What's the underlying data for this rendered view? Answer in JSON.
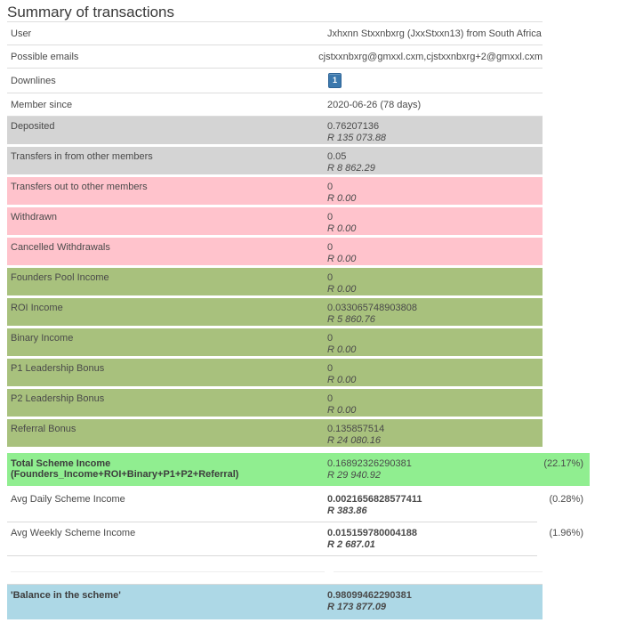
{
  "title": "Summary of transactions",
  "colors": {
    "row_gray": "#d4d4d4",
    "row_pink": "#ffc3cc",
    "row_green": "#a8c17d",
    "row_total_green": "#90ee90",
    "row_balance_blue": "#add8e6",
    "badge_blue": "#3b78ad",
    "border_gray": "#dddddd"
  },
  "info_rows": [
    {
      "label": "User",
      "value": "Jxhxnn Stxxnbxrg (JxxStxxn13) from South Africa"
    },
    {
      "label": "Possible emails",
      "value": "cjstxxnbxrg@gmxxl.cxm,cjstxxnbxrg+2@gmxxl.cxm"
    },
    {
      "label": "Downlines",
      "badge": "1"
    },
    {
      "label": "Member since",
      "value": "2020-06-26 (78 days)"
    }
  ],
  "amount_rows": [
    {
      "label": "Deposited",
      "btc": "0.76207136",
      "rand": "R 135 073.88",
      "bg": "row_gray"
    },
    {
      "label": "Transfers in from other members",
      "btc": "0.05",
      "rand": "R 8 862.29",
      "bg": "row_gray"
    },
    {
      "label": "Transfers out to other members",
      "btc": "0",
      "rand": "R 0.00",
      "bg": "row_pink"
    },
    {
      "label": "Withdrawn",
      "btc": "0",
      "rand": "R 0.00",
      "bg": "row_pink"
    },
    {
      "label": "Cancelled Withdrawals",
      "btc": "0",
      "rand": "R 0.00",
      "bg": "row_pink"
    },
    {
      "label": "Founders Pool Income",
      "btc": "0",
      "rand": "R 0.00",
      "bg": "row_green"
    },
    {
      "label": "ROI Income",
      "btc": "0.033065748903808",
      "rand": "R 5 860.76",
      "bg": "row_green"
    },
    {
      "label": "Binary Income",
      "btc": "0",
      "rand": "R 0.00",
      "bg": "row_green"
    },
    {
      "label": "P1 Leadership Bonus",
      "btc": "0",
      "rand": "R 0.00",
      "bg": "row_green"
    },
    {
      "label": "P2 Leadership Bonus",
      "btc": "0",
      "rand": "R 0.00",
      "bg": "row_green"
    },
    {
      "label": "Referral Bonus",
      "btc": "0.135857514",
      "rand": "R 24 080.16",
      "bg": "row_green"
    }
  ],
  "total_row": {
    "label": "Total Scheme Income (Founders_Income+ROI+Binary+P1+P2+Referral)",
    "btc": "0.16892326290381",
    "rand": "R 29 940.92",
    "pct": "(22.17%)",
    "bg": "row_total_green"
  },
  "avg_rows": [
    {
      "label": "Avg Daily Scheme Income",
      "btc": "0.0021656828577411",
      "rand": "R 383.86",
      "pct": "(0.28%)"
    },
    {
      "label": "Avg Weekly Scheme Income",
      "btc": "0.015159780004188",
      "rand": "R 2 687.01",
      "pct": "(1.96%)"
    }
  ],
  "balance_row": {
    "label": "'Balance in the scheme'",
    "btc": "0.98099462290381",
    "rand": "R 173 877.09",
    "bg": "row_balance_blue"
  }
}
